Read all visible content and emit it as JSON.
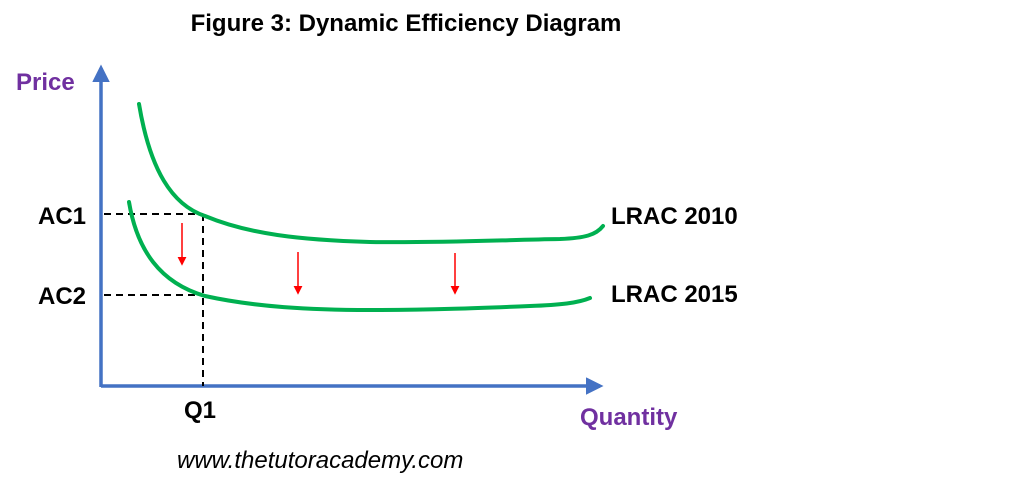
{
  "title": "Figure 3: Dynamic Efficiency Diagram",
  "axes": {
    "y_label": "Price",
    "x_label": "Quantity",
    "color": "#4472C4",
    "label_color": "#7030A0"
  },
  "ticks": {
    "ac1": "AC1",
    "ac2": "AC2",
    "q1": "Q1"
  },
  "curves": [
    {
      "label": "LRAC 2010",
      "color": "#00B050"
    },
    {
      "label": "LRAC 2015",
      "color": "#00B050"
    }
  ],
  "shift_arrow_color": "#FF0000",
  "source": "www.thetutoracademy.com"
}
